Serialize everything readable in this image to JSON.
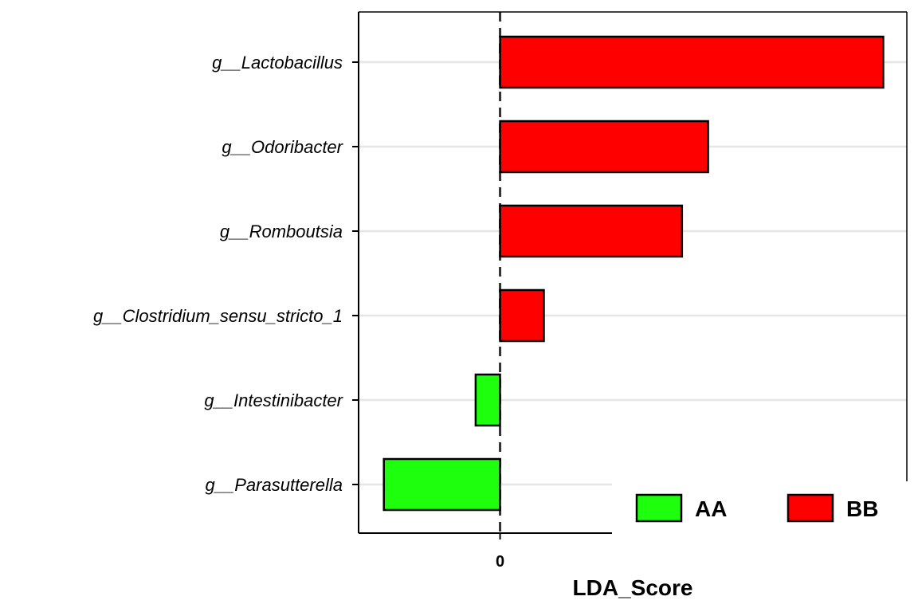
{
  "chart_data": {
    "type": "bar",
    "orientation": "horizontal",
    "categories": [
      "g__Lactobacillus",
      "g__Odoribacter",
      "g__Romboutsia",
      "g__Clostridium_sensu_stricto_1",
      "g__Intestinibacter",
      "g__Parasutterella"
    ],
    "values": [
      4.55,
      2.47,
      2.16,
      0.52,
      -0.29,
      -1.38
    ],
    "groups": [
      "BB",
      "BB",
      "BB",
      "BB",
      "AA",
      "AA"
    ],
    "xlabel": "LDA_Score",
    "ylabel": "",
    "x_ticks": [
      0
    ],
    "xlim": [
      -1.68,
      4.83
    ],
    "zero_line": "dashed",
    "grid": "horizontal-major",
    "legend": {
      "position": "bottom-right",
      "entries": [
        {
          "name": "AA",
          "color": "#1EFF0D"
        },
        {
          "name": "BB",
          "color": "#FF0000"
        }
      ]
    },
    "colors": {
      "AA": "#1EFF0D",
      "BB": "#FF0000"
    }
  }
}
